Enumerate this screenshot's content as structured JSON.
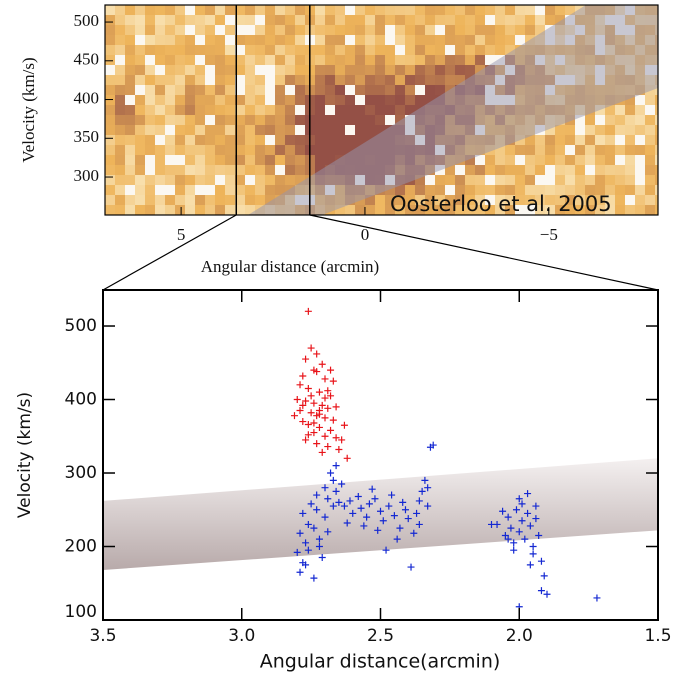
{
  "chart_data": [
    {
      "type": "contour",
      "x_label": "Angular distance (arcmin)",
      "y_label": "Velocity (km/s)",
      "annotation": "Oosterloo et al. 2005",
      "xlim": [
        7.07,
        -7.97
      ],
      "ylim": [
        251,
        522
      ],
      "xticks": [
        5,
        0,
        {
          "value": -5,
          "label": "−5"
        }
      ],
      "yticks": [
        300,
        350,
        400,
        450,
        500
      ]
    },
    {
      "type": "scatter",
      "x_label": "Angular distance(arcmin)",
      "y_label": "Velocity (km/s)",
      "xlim": [
        3.5,
        1.5
      ],
      "ylim": [
        100,
        549
      ],
      "xticks": [
        3.5,
        {
          "value": 3,
          "label": "3.0"
        },
        2.5,
        {
          "value": 2,
          "label": "2.0"
        },
        1.5
      ],
      "yticks": [
        100,
        200,
        300,
        400,
        500
      ],
      "band": {
        "x": [
          3.5,
          1.5
        ],
        "lower": [
          168,
          222
        ],
        "upper": [
          262,
          320
        ]
      },
      "series": [
        {
          "color": "#e8141a",
          "x": [
            2.76,
            2.75,
            2.73,
            2.77,
            2.71,
            2.74,
            2.78,
            2.7,
            2.79,
            2.76,
            2.72,
            2.68,
            2.8,
            2.77,
            2.74,
            2.71,
            2.69,
            2.79,
            2.75,
            2.73,
            2.7,
            2.67,
            2.78,
            2.76,
            2.72,
            2.68,
            2.74,
            2.7,
            2.66,
            2.77,
            2.73,
            2.69,
            2.65,
            2.71,
            2.62,
            2.64,
            2.66,
            2.78,
            2.75,
            2.72,
            2.81,
            2.69,
            2.74,
            2.7,
            2.76,
            2.63,
            2.67,
            2.73,
            2.68,
            2.72
          ],
          "values": [
            520,
            470,
            462,
            455,
            448,
            440,
            432,
            428,
            420,
            415,
            410,
            405,
            400,
            398,
            395,
            392,
            388,
            385,
            382,
            378,
            375,
            372,
            370,
            366,
            362,
            358,
            355,
            350,
            348,
            345,
            340,
            336,
            332,
            328,
            320,
            345,
            390,
            392,
            405,
            385,
            378,
            412,
            368,
            402,
            352,
            365,
            425,
            438,
            440,
            380
          ]
        },
        {
          "color": "#1428d2",
          "x": [
            2.79,
            2.78,
            2.8,
            2.77,
            2.79,
            2.76,
            2.78,
            2.75,
            2.73,
            2.74,
            2.72,
            2.76,
            2.71,
            2.73,
            2.7,
            2.68,
            2.67,
            2.66,
            2.69,
            2.66,
            2.67,
            2.74,
            2.72,
            2.64,
            2.65,
            2.7,
            2.77,
            2.69,
            2.63,
            2.61,
            2.6,
            2.58,
            2.57,
            2.55,
            2.54,
            2.52,
            2.5,
            2.49,
            2.47,
            2.46,
            2.45,
            2.43,
            2.42,
            2.41,
            2.4,
            2.38,
            2.37,
            2.36,
            2.35,
            2.34,
            2.33,
            2.32,
            2.31,
            2.44,
            2.48,
            2.39,
            2.56,
            2.62,
            2.53,
            2.51,
            2.36,
            2.33,
            2.08,
            2.1,
            2.05,
            2.04,
            2.03,
            2.02,
            2.01,
            2.0,
            1.99,
            1.98,
            1.97,
            1.96,
            1.95,
            1.94,
            1.93,
            1.92,
            1.91,
            2.06,
            2.0,
            1.97,
            1.95,
            1.92,
            1.9,
            2.02,
            1.99,
            2.0,
            1.72,
            1.94,
            2.04,
            1.96
          ],
          "values": [
            165,
            178,
            192,
            205,
            218,
            230,
            245,
            258,
            250,
            225,
            210,
            195,
            185,
            270,
            280,
            300,
            290,
            310,
            265,
            275,
            255,
            157,
            200,
            285,
            260,
            240,
            175,
            220,
            255,
            262,
            245,
            268,
            252,
            240,
            258,
            265,
            248,
            235,
            255,
            270,
            242,
            225,
            260,
            250,
            238,
            218,
            245,
            262,
            275,
            290,
            280,
            335,
            338,
            210,
            195,
            172,
            228,
            232,
            278,
            222,
            230,
            255,
            230,
            230,
            215,
            240,
            225,
            205,
            250,
            220,
            235,
            210,
            245,
            228,
            200,
            255,
            215,
            180,
            160,
            248,
            265,
            272,
            190,
            140,
            135,
            195,
            258,
            118,
            130,
            238,
            210,
            175
          ]
        }
      ]
    }
  ]
}
